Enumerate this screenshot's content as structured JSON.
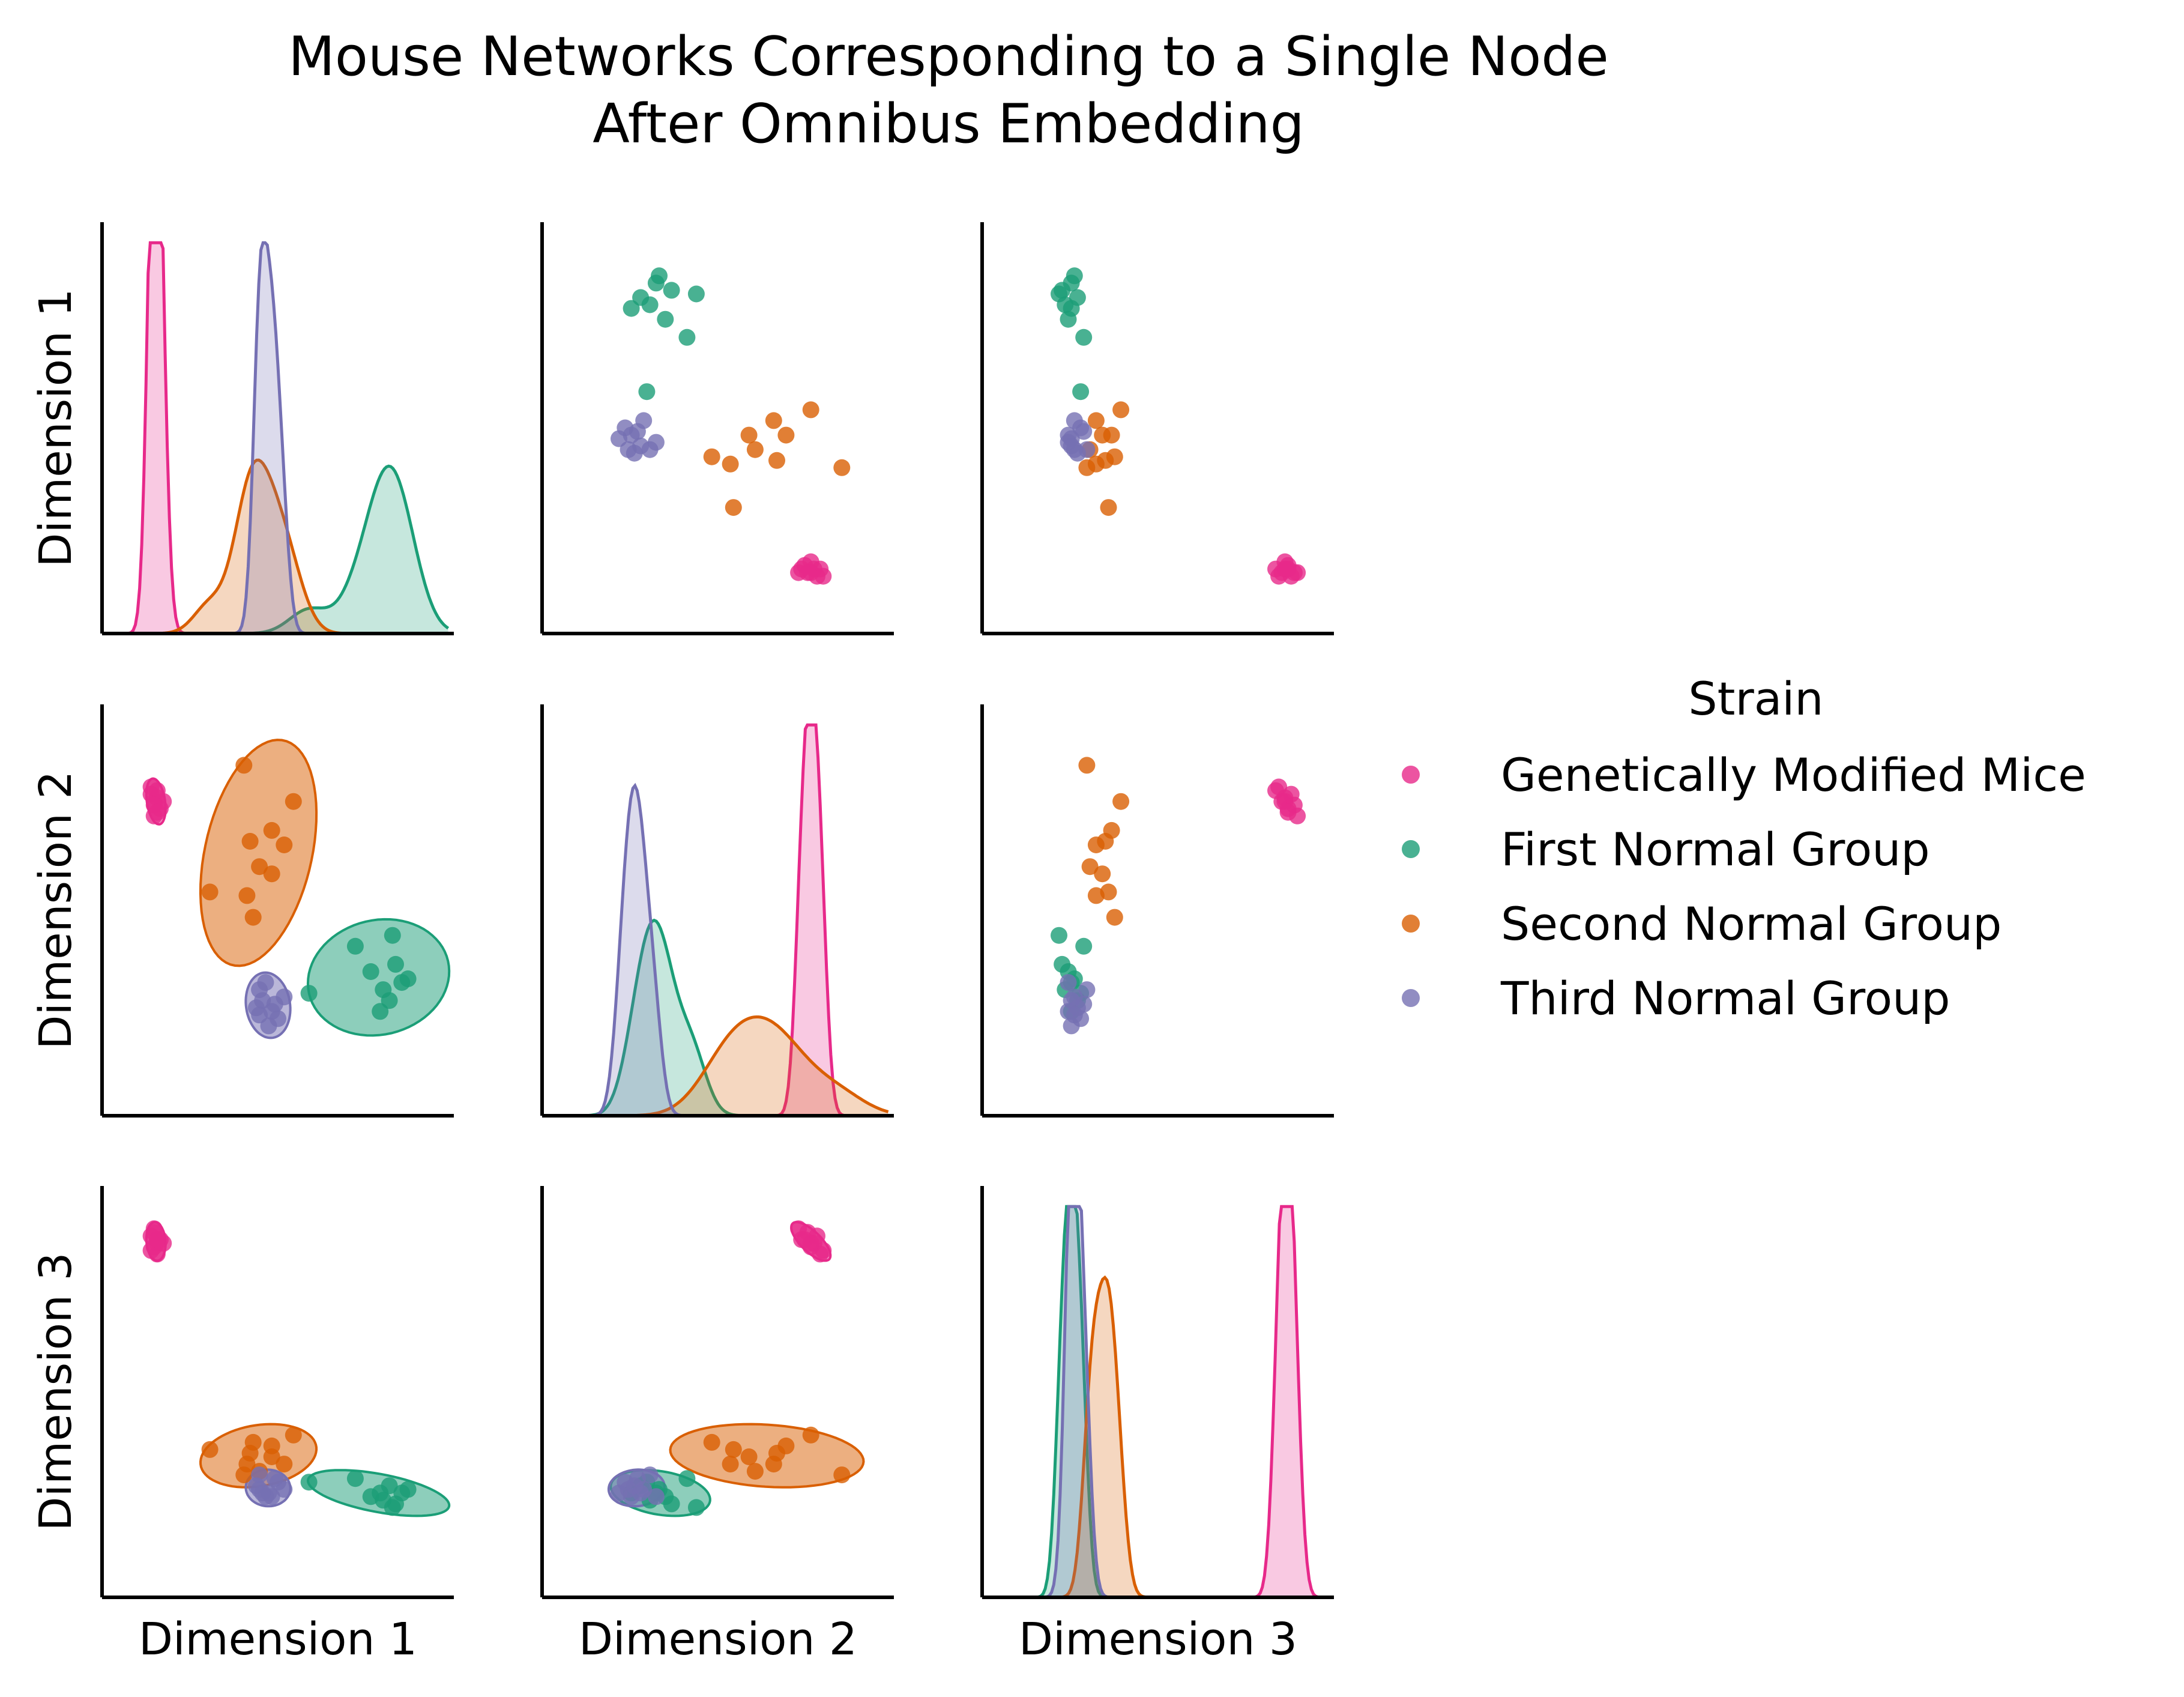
{
  "title_line1": "Mouse Networks Corresponding to a Single Node",
  "title_line2": "After Omnibus Embedding",
  "legend": {
    "title": "Strain",
    "items": [
      {
        "label": "Genetically Modified Mice",
        "color": "#e7298a"
      },
      {
        "label": "First Normal Group",
        "color": "#1b9e77"
      },
      {
        "label": "Second Normal Group",
        "color": "#d95f02"
      },
      {
        "label": "Third Normal Group",
        "color": "#7570b3"
      }
    ]
  },
  "chart_data": {
    "type": "scatter",
    "subtype": "pairplot",
    "variables": [
      "Dimension 1",
      "Dimension 2",
      "Dimension 3"
    ],
    "diagonal": "kde",
    "lower_triangle": "scatter with covariance ellipses",
    "upper_triangle": "strip scatter",
    "ticks_shown": false,
    "grid": false,
    "legend_placement": "right",
    "axis_ranges": {
      "Dimension 1": [
        0,
        1
      ],
      "Dimension 2": [
        0,
        1
      ],
      "Dimension 3": [
        0,
        1
      ]
    },
    "note": "Axes have no printed tick labels; values are approximate positions in normalized data units (0-1) per dimension.",
    "series": [
      {
        "name": "Genetically Modified Mice",
        "color": "#e7298a",
        "points": [
          {
            "d1": 0.1,
            "d2": 0.8,
            "d3": 0.9
          },
          {
            "d1": 0.09,
            "d2": 0.82,
            "d3": 0.93
          },
          {
            "d1": 0.11,
            "d2": 0.83,
            "d3": 0.88
          },
          {
            "d1": 0.12,
            "d2": 0.78,
            "d3": 0.92
          },
          {
            "d1": 0.1,
            "d2": 0.76,
            "d3": 0.95
          },
          {
            "d1": 0.11,
            "d2": 0.81,
            "d3": 0.91
          },
          {
            "d1": 0.09,
            "d2": 0.84,
            "d3": 0.89
          },
          {
            "d1": 0.13,
            "d2": 0.8,
            "d3": 0.91
          },
          {
            "d1": 0.1,
            "d2": 0.79,
            "d3": 0.94
          },
          {
            "d1": 0.11,
            "d2": 0.77,
            "d3": 0.92
          }
        ]
      },
      {
        "name": "First Normal Group",
        "color": "#1b9e77",
        "points": [
          {
            "d1": 0.9,
            "d2": 0.3,
            "d3": 0.22
          },
          {
            "d1": 0.84,
            "d2": 0.28,
            "d3": 0.2
          },
          {
            "d1": 0.86,
            "d2": 0.25,
            "d3": 0.24
          },
          {
            "d1": 0.8,
            "d2": 0.33,
            "d3": 0.21
          },
          {
            "d1": 0.75,
            "d2": 0.4,
            "d3": 0.26
          },
          {
            "d1": 0.88,
            "d2": 0.35,
            "d3": 0.19
          },
          {
            "d1": 0.92,
            "d2": 0.31,
            "d3": 0.23
          },
          {
            "d1": 0.87,
            "d2": 0.43,
            "d3": 0.18
          },
          {
            "d1": 0.6,
            "d2": 0.27,
            "d3": 0.25
          },
          {
            "d1": 0.83,
            "d2": 0.22,
            "d3": 0.22
          }
        ]
      },
      {
        "name": "Second Normal Group",
        "color": "#d95f02",
        "points": [
          {
            "d1": 0.52,
            "d2": 0.68,
            "d3": 0.3
          },
          {
            "d1": 0.48,
            "d2": 0.72,
            "d3": 0.35
          },
          {
            "d1": 0.41,
            "d2": 0.69,
            "d3": 0.33
          },
          {
            "d1": 0.44,
            "d2": 0.62,
            "d3": 0.28
          },
          {
            "d1": 0.55,
            "d2": 0.8,
            "d3": 0.38
          },
          {
            "d1": 0.4,
            "d2": 0.54,
            "d3": 0.3
          },
          {
            "d1": 0.48,
            "d2": 0.6,
            "d3": 0.32
          },
          {
            "d1": 0.42,
            "d2": 0.48,
            "d3": 0.36
          },
          {
            "d1": 0.39,
            "d2": 0.9,
            "d3": 0.27
          },
          {
            "d1": 0.28,
            "d2": 0.55,
            "d3": 0.34
          }
        ]
      },
      {
        "name": "Third Normal Group",
        "color": "#7570b3",
        "points": [
          {
            "d1": 0.45,
            "d2": 0.25,
            "d3": 0.22
          },
          {
            "d1": 0.5,
            "d2": 0.2,
            "d3": 0.25
          },
          {
            "d1": 0.48,
            "d2": 0.22,
            "d3": 0.21
          },
          {
            "d1": 0.44,
            "d2": 0.28,
            "d3": 0.27
          },
          {
            "d1": 0.52,
            "d2": 0.26,
            "d3": 0.23
          },
          {
            "d1": 0.47,
            "d2": 0.18,
            "d3": 0.22
          },
          {
            "d1": 0.43,
            "d2": 0.23,
            "d3": 0.24
          },
          {
            "d1": 0.46,
            "d2": 0.3,
            "d3": 0.21
          },
          {
            "d1": 0.49,
            "d2": 0.24,
            "d3": 0.26
          },
          {
            "d1": 0.44,
            "d2": 0.21,
            "d3": 0.23
          }
        ]
      }
    ]
  }
}
